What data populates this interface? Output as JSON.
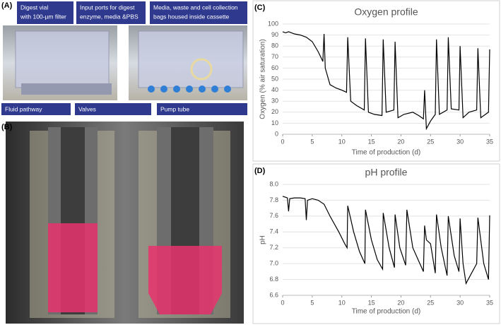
{
  "panel_a": {
    "label": "(A)",
    "callouts": [
      [
        "Digest vial",
        "with 100-µm filter"
      ],
      [
        "Input ports for digest",
        "enzyme, media &PBS"
      ],
      [
        "Media, waste and cell collection",
        "bags housed inside cassette"
      ],
      [
        "Fluid pathway"
      ],
      [
        "Valves"
      ],
      [
        "Pump tube"
      ]
    ]
  },
  "panel_b": {
    "label": "(B)"
  },
  "chart_data": [
    {
      "type": "line",
      "panel_label": "(C)",
      "title": "Oxygen profile",
      "x_label": "Time of production (d)",
      "y_label": "Oxygen (% air saturation)",
      "color": "#000000",
      "grid": true,
      "x": [
        0,
        0.5,
        1,
        2,
        3,
        4,
        5,
        6,
        6.8,
        7,
        7.2,
        8,
        9,
        10,
        10.8,
        11,
        11.5,
        12.5,
        13.8,
        14,
        14.5,
        15.5,
        16.8,
        17,
        17.5,
        18.8,
        19,
        19.5,
        20.5,
        22,
        23,
        23.8,
        24,
        24.3,
        25,
        25.8,
        26,
        26.5,
        27.8,
        28,
        28.5,
        29.8,
        30,
        30.5,
        31.5,
        32.8,
        33,
        33.5,
        34.8,
        35
      ],
      "values": [
        93,
        92,
        93,
        91,
        90,
        88,
        84,
        75,
        66,
        91,
        60,
        45,
        42,
        40,
        38,
        88,
        30,
        26,
        22,
        87,
        20,
        18,
        17,
        86,
        20,
        22,
        84,
        15,
        18,
        20,
        17,
        14,
        40,
        5,
        12,
        18,
        86,
        18,
        22,
        88,
        23,
        22,
        80,
        15,
        20,
        22,
        78,
        15,
        20,
        77
      ],
      "xlim": [
        0,
        35
      ],
      "ylim": [
        0,
        100
      ],
      "xticks": [
        0,
        5,
        10,
        15,
        20,
        25,
        30,
        35
      ],
      "yticks": [
        0,
        10,
        20,
        30,
        40,
        50,
        60,
        70,
        80,
        90,
        100
      ]
    },
    {
      "type": "line",
      "panel_label": "(D)",
      "title": "pH profile",
      "x_label": "Time of production (d)",
      "y_label": "pH",
      "color": "#000000",
      "grid": true,
      "x": [
        0,
        0.8,
        1,
        1.2,
        2,
        3,
        3.8,
        4,
        4.2,
        5,
        6,
        7,
        8,
        9.5,
        10.5,
        10.9,
        11,
        12,
        13,
        13.9,
        14,
        15,
        16,
        16.9,
        17,
        18,
        18.9,
        19,
        19.8,
        20.8,
        21,
        22,
        23.8,
        24,
        24.3,
        25,
        25.8,
        26,
        26.8,
        27.8,
        28,
        29,
        29.8,
        30,
        30.5,
        31,
        32.8,
        33,
        34,
        34.8,
        35
      ],
      "values": [
        7.85,
        7.83,
        7.66,
        7.82,
        7.83,
        7.83,
        7.82,
        7.55,
        7.8,
        7.82,
        7.8,
        7.75,
        7.6,
        7.4,
        7.25,
        7.2,
        7.73,
        7.4,
        7.15,
        7.0,
        7.68,
        7.3,
        7.05,
        6.93,
        7.64,
        7.2,
        6.95,
        7.62,
        7.2,
        6.98,
        7.68,
        7.2,
        6.9,
        7.48,
        7.3,
        7.25,
        6.88,
        7.62,
        7.2,
        6.85,
        7.6,
        7.1,
        6.9,
        7.57,
        7.0,
        6.75,
        7.0,
        7.58,
        7.0,
        6.8,
        7.61
      ],
      "xlim": [
        0,
        35
      ],
      "ylim": [
        6.6,
        8.0
      ],
      "xticks": [
        0,
        5,
        10,
        15,
        20,
        25,
        30,
        35
      ],
      "yticks": [
        6.6,
        6.8,
        {
          "value": 7,
          "label": "7.0"
        },
        7.2,
        7.4,
        7.6,
        7.8,
        {
          "value": 8,
          "label": "8.0"
        }
      ]
    }
  ]
}
